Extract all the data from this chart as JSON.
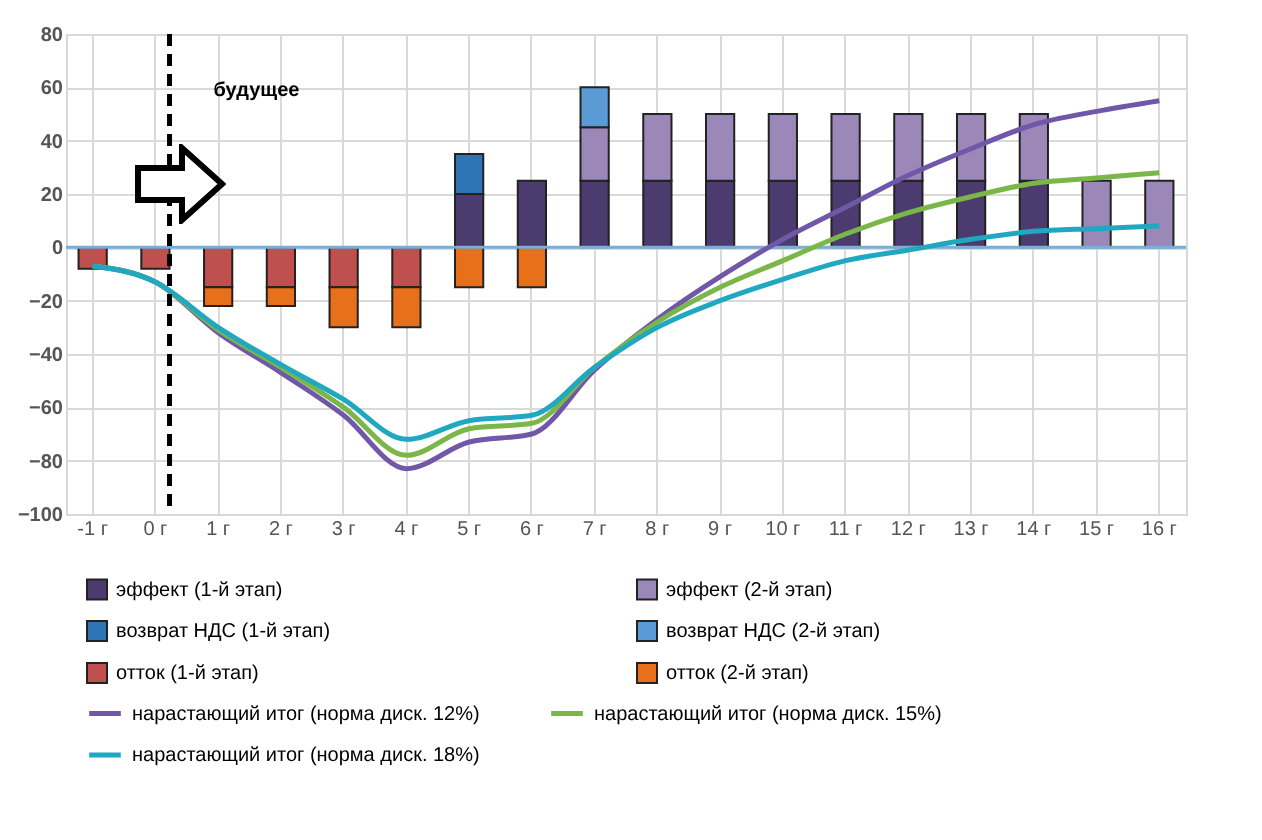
{
  "chart_data": {
    "type": "bar",
    "stacked": true,
    "categories": [
      "-1 г",
      "0 г",
      "1 г",
      "2 г",
      "3 г",
      "4 г",
      "5 г",
      "6 г",
      "7 г",
      "8 г",
      "9 г",
      "10 г",
      "11 г",
      "12 г",
      "13 г",
      "14 г",
      "15 г",
      "16 г"
    ],
    "series": [
      {
        "name": "эффект (1-й этап)",
        "color": "#4b3b6e",
        "values": [
          null,
          null,
          null,
          null,
          null,
          null,
          20,
          25,
          25,
          25,
          25,
          25,
          25,
          25,
          25,
          25,
          null,
          null
        ]
      },
      {
        "name": "эффект (2-й этап)",
        "color": "#9b87b8",
        "values": [
          null,
          null,
          null,
          null,
          null,
          null,
          null,
          null,
          20,
          25,
          25,
          25,
          25,
          25,
          25,
          25,
          25,
          25
        ]
      },
      {
        "name": "возврат НДС (1-й этап)",
        "color": "#2e75b6",
        "values": [
          null,
          null,
          null,
          null,
          null,
          null,
          15,
          null,
          null,
          null,
          null,
          null,
          null,
          null,
          null,
          null,
          null,
          null
        ]
      },
      {
        "name": "возврат НДС (2-й этап)",
        "color": "#5b9bd5",
        "values": [
          null,
          null,
          null,
          null,
          null,
          null,
          null,
          null,
          15,
          null,
          null,
          null,
          null,
          null,
          null,
          null,
          null,
          null
        ]
      },
      {
        "name": "отток (1-й этап)",
        "color": "#c0504d",
        "values": [
          -8,
          -8,
          -15,
          -15,
          -15,
          -15,
          null,
          null,
          null,
          null,
          null,
          null,
          null,
          null,
          null,
          null,
          null,
          null
        ]
      },
      {
        "name": "отток (2-й этап)",
        "color": "#e8701a",
        "values": [
          null,
          null,
          -7,
          -7,
          -15,
          -15,
          -15,
          -15,
          null,
          null,
          null,
          null,
          null,
          null,
          null,
          null,
          null,
          null
        ]
      },
      {
        "name": "нарастающий итог (норма диск. 12%)",
        "type": "line",
        "color": "#7057a8",
        "values": [
          -7,
          -13,
          -32,
          -47,
          -63,
          -83,
          -73,
          -70,
          -46,
          -27,
          -11,
          3,
          15,
          27,
          37,
          46,
          51,
          55
        ]
      },
      {
        "name": "нарастающий итог (норма диск. 15%)",
        "type": "line",
        "color": "#7ab648",
        "values": [
          -7,
          -13,
          -31,
          -45,
          -60,
          -78,
          -68,
          -66,
          -45,
          -28,
          -15,
          -5,
          5,
          13,
          19,
          24,
          26,
          28
        ]
      },
      {
        "name": "нарастающий итог (норма диск. 18%)",
        "type": "line",
        "color": "#1fa8c0",
        "values": [
          -7,
          -13,
          -30,
          -44,
          -57,
          -72,
          -65,
          -63,
          -45,
          -30,
          -20,
          -12,
          -5,
          -1,
          3,
          6,
          7,
          8
        ]
      }
    ],
    "ylim": [
      -100,
      80
    ],
    "yticks": [
      -100,
      -80,
      -60,
      -40,
      -20,
      0,
      20,
      40,
      60,
      80
    ],
    "grid": true,
    "legend": "bottom",
    "ref_lines": [
      {
        "axis": "x",
        "value": "0 г",
        "label": "будущее",
        "color": "#000000",
        "line_style": "dashed"
      },
      {
        "axis": "y",
        "value": 0,
        "color": "#7aaed6"
      }
    ]
  }
}
